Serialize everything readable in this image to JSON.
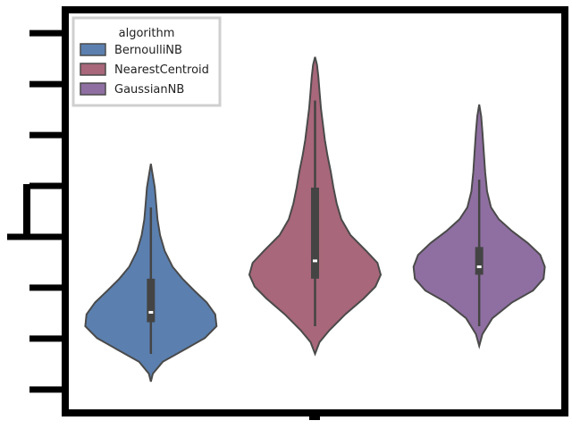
{
  "chart_data": {
    "type": "violin",
    "title": "",
    "xlabel": "",
    "ylabel": "",
    "legend": {
      "title": "algorithm",
      "placement": "top-left",
      "entries": [
        "BernoulliNB",
        "NearestCentroid",
        "GaussianNB"
      ]
    },
    "ylim": [
      0,
      1
    ],
    "y_ticks_count": 8,
    "y_tick_labels_visible": false,
    "x_tick_labels_visible": false,
    "series": [
      {
        "name": "BernoulliNB",
        "color": "#5b80b0",
        "whisker_low": 0.14,
        "q1": 0.22,
        "median": 0.245,
        "q3": 0.33,
        "whisker_high": 0.51,
        "kde_min": 0.07,
        "kde_max": 0.62,
        "density": [
          [
            0.07,
            0.0
          ],
          [
            0.09,
            0.03
          ],
          [
            0.12,
            0.18
          ],
          [
            0.15,
            0.5
          ],
          [
            0.18,
            0.82
          ],
          [
            0.21,
            1.0
          ],
          [
            0.24,
            0.98
          ],
          [
            0.27,
            0.85
          ],
          [
            0.3,
            0.66
          ],
          [
            0.33,
            0.48
          ],
          [
            0.36,
            0.33
          ],
          [
            0.4,
            0.21
          ],
          [
            0.44,
            0.14
          ],
          [
            0.48,
            0.1
          ],
          [
            0.52,
            0.08
          ],
          [
            0.56,
            0.06
          ],
          [
            0.59,
            0.03
          ],
          [
            0.62,
            0.0
          ]
        ]
      },
      {
        "name": "NearestCentroid",
        "color": "#a8677a",
        "whisker_low": 0.21,
        "q1": 0.33,
        "median": 0.375,
        "q3": 0.56,
        "whisker_high": 0.78,
        "kde_min": 0.14,
        "kde_max": 0.89,
        "density": [
          [
            0.14,
            0.0
          ],
          [
            0.17,
            0.07
          ],
          [
            0.2,
            0.22
          ],
          [
            0.24,
            0.46
          ],
          [
            0.28,
            0.74
          ],
          [
            0.31,
            0.92
          ],
          [
            0.34,
            1.0
          ],
          [
            0.37,
            0.95
          ],
          [
            0.4,
            0.78
          ],
          [
            0.44,
            0.54
          ],
          [
            0.48,
            0.4
          ],
          [
            0.52,
            0.33
          ],
          [
            0.56,
            0.28
          ],
          [
            0.6,
            0.24
          ],
          [
            0.64,
            0.19
          ],
          [
            0.68,
            0.15
          ],
          [
            0.72,
            0.12
          ],
          [
            0.76,
            0.09
          ],
          [
            0.8,
            0.07
          ],
          [
            0.84,
            0.05
          ],
          [
            0.87,
            0.03
          ],
          [
            0.89,
            0.0
          ]
        ]
      },
      {
        "name": "GaussianNB",
        "color": "#8f6fa1",
        "whisker_low": 0.21,
        "q1": 0.34,
        "median": 0.36,
        "q3": 0.41,
        "whisker_high": 0.58,
        "kde_min": 0.16,
        "kde_max": 0.77,
        "density": [
          [
            0.16,
            0.0
          ],
          [
            0.19,
            0.05
          ],
          [
            0.23,
            0.2
          ],
          [
            0.27,
            0.5
          ],
          [
            0.3,
            0.82
          ],
          [
            0.33,
            0.98
          ],
          [
            0.36,
            1.0
          ],
          [
            0.39,
            0.93
          ],
          [
            0.42,
            0.74
          ],
          [
            0.45,
            0.5
          ],
          [
            0.48,
            0.3
          ],
          [
            0.51,
            0.18
          ],
          [
            0.55,
            0.12
          ],
          [
            0.6,
            0.09
          ],
          [
            0.65,
            0.07
          ],
          [
            0.7,
            0.05
          ],
          [
            0.74,
            0.03
          ],
          [
            0.77,
            0.0
          ]
        ]
      }
    ]
  }
}
